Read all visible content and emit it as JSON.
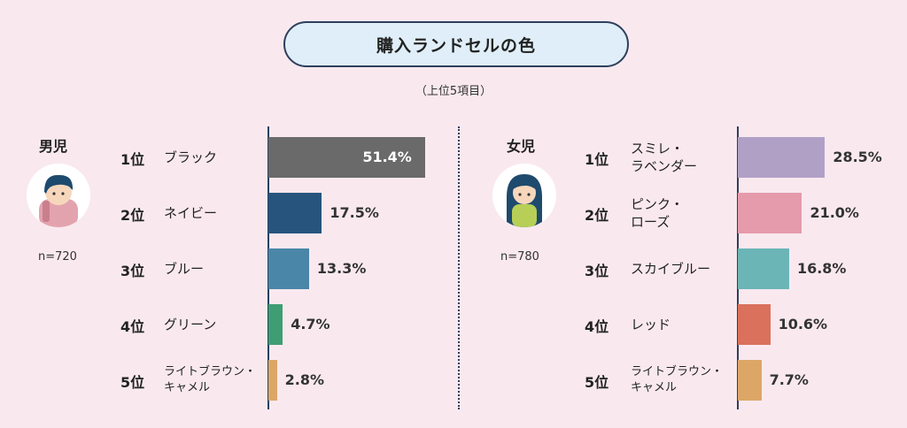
{
  "title": "購入ランドセルの色",
  "subtitle": "（上位5項目）",
  "chart_data": [
    {
      "type": "bar",
      "orientation": "horizontal",
      "group": "男児",
      "n_label": "n=720",
      "ranks": [
        "1位",
        "2位",
        "3位",
        "4位",
        "5位"
      ],
      "categories": [
        "ブラック",
        "ネイビー",
        "ブルー",
        "グリーン",
        "ライトブラウン・\nキャメル"
      ],
      "values": [
        51.4,
        17.5,
        13.3,
        4.7,
        2.8
      ],
      "value_labels": [
        "51.4%",
        "17.5%",
        "13.3%",
        "4.7%",
        "2.8%"
      ],
      "colors": [
        "#6a6a6a",
        "#27547d",
        "#4a86a8",
        "#3f9d73",
        "#dca766"
      ],
      "unit": "%"
    },
    {
      "type": "bar",
      "orientation": "horizontal",
      "group": "女児",
      "n_label": "n=780",
      "ranks": [
        "1位",
        "2位",
        "3位",
        "4位",
        "5位"
      ],
      "categories": [
        "スミレ・\nラベンダー",
        "ピンク・\nローズ",
        "スカイブルー",
        "レッド",
        "ライトブラウン・\nキャメル"
      ],
      "values": [
        28.5,
        21.0,
        16.8,
        10.6,
        7.7
      ],
      "value_labels": [
        "28.5%",
        "21.0%",
        "16.8%",
        "10.6%",
        "7.7%"
      ],
      "colors": [
        "#b1a0c6",
        "#e59bac",
        "#6bb5b7",
        "#d9715c",
        "#dca766"
      ],
      "unit": "%"
    }
  ]
}
